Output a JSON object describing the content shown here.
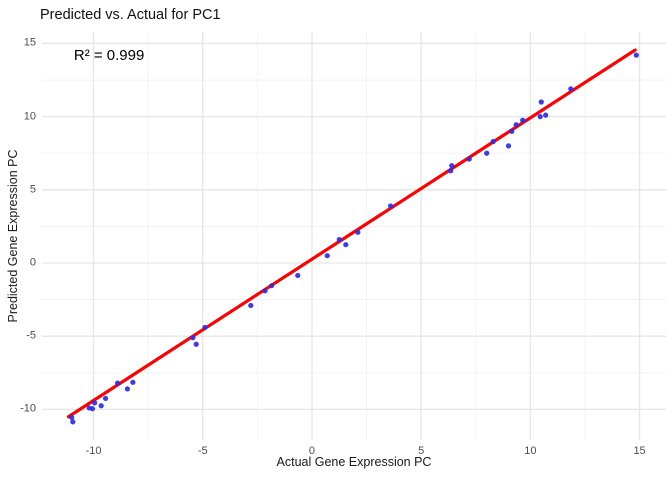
{
  "chart_data": {
    "type": "scatter",
    "title": "Predicted vs. Actual for PC1",
    "annotation": {
      "text": "R² = 0.999",
      "x": -10.9,
      "y": 14.2
    },
    "xlabel": "Actual Gene Expression PC",
    "ylabel": "Predicted Gene Expression PC",
    "xlim": [
      -12.36,
      16.21
    ],
    "ylim": [
      -12.09,
      15.78
    ],
    "x_ticks": [
      -10,
      -5,
      0,
      5,
      10,
      15
    ],
    "y_ticks": [
      -10,
      -5,
      0,
      5,
      10,
      15
    ],
    "x_minor_ticks": [
      -7.5,
      -2.5,
      2.5,
      7.5,
      12.5
    ],
    "y_minor_ticks": [
      -7.5,
      -2.5,
      2.5,
      7.5,
      12.5
    ],
    "grid": "major+minor",
    "legend": "none",
    "point_color": "#2b2be8",
    "line_color": "#ff0000",
    "points": [
      [
        -11.0,
        -10.55
      ],
      [
        -10.95,
        -10.85
      ],
      [
        -10.2,
        -9.9
      ],
      [
        -10.05,
        -9.95
      ],
      [
        -9.95,
        -9.55
      ],
      [
        -9.65,
        -9.75
      ],
      [
        -9.45,
        -9.25
      ],
      [
        -8.9,
        -8.2
      ],
      [
        -8.45,
        -8.6
      ],
      [
        -8.2,
        -8.15
      ],
      [
        -5.45,
        -5.1
      ],
      [
        -5.3,
        -5.55
      ],
      [
        -4.9,
        -4.4
      ],
      [
        -2.8,
        -2.9
      ],
      [
        -2.15,
        -1.9
      ],
      [
        -1.85,
        -1.55
      ],
      [
        -0.65,
        -0.85
      ],
      [
        0.7,
        0.5
      ],
      [
        1.25,
        1.6
      ],
      [
        1.55,
        1.25
      ],
      [
        2.1,
        2.1
      ],
      [
        3.6,
        3.9
      ],
      [
        6.35,
        6.3
      ],
      [
        6.4,
        6.65
      ],
      [
        7.2,
        7.1
      ],
      [
        8.0,
        7.5
      ],
      [
        8.3,
        8.3
      ],
      [
        9.0,
        8.0
      ],
      [
        9.15,
        9.0
      ],
      [
        9.35,
        9.45
      ],
      [
        9.65,
        9.75
      ],
      [
        10.45,
        10.0
      ],
      [
        10.7,
        10.1
      ],
      [
        10.5,
        11.0
      ],
      [
        11.85,
        11.9
      ],
      [
        14.85,
        14.2
      ]
    ],
    "trend_line": {
      "x1": -11.15,
      "y1": -10.5,
      "x2": 14.8,
      "y2": 14.55
    }
  }
}
